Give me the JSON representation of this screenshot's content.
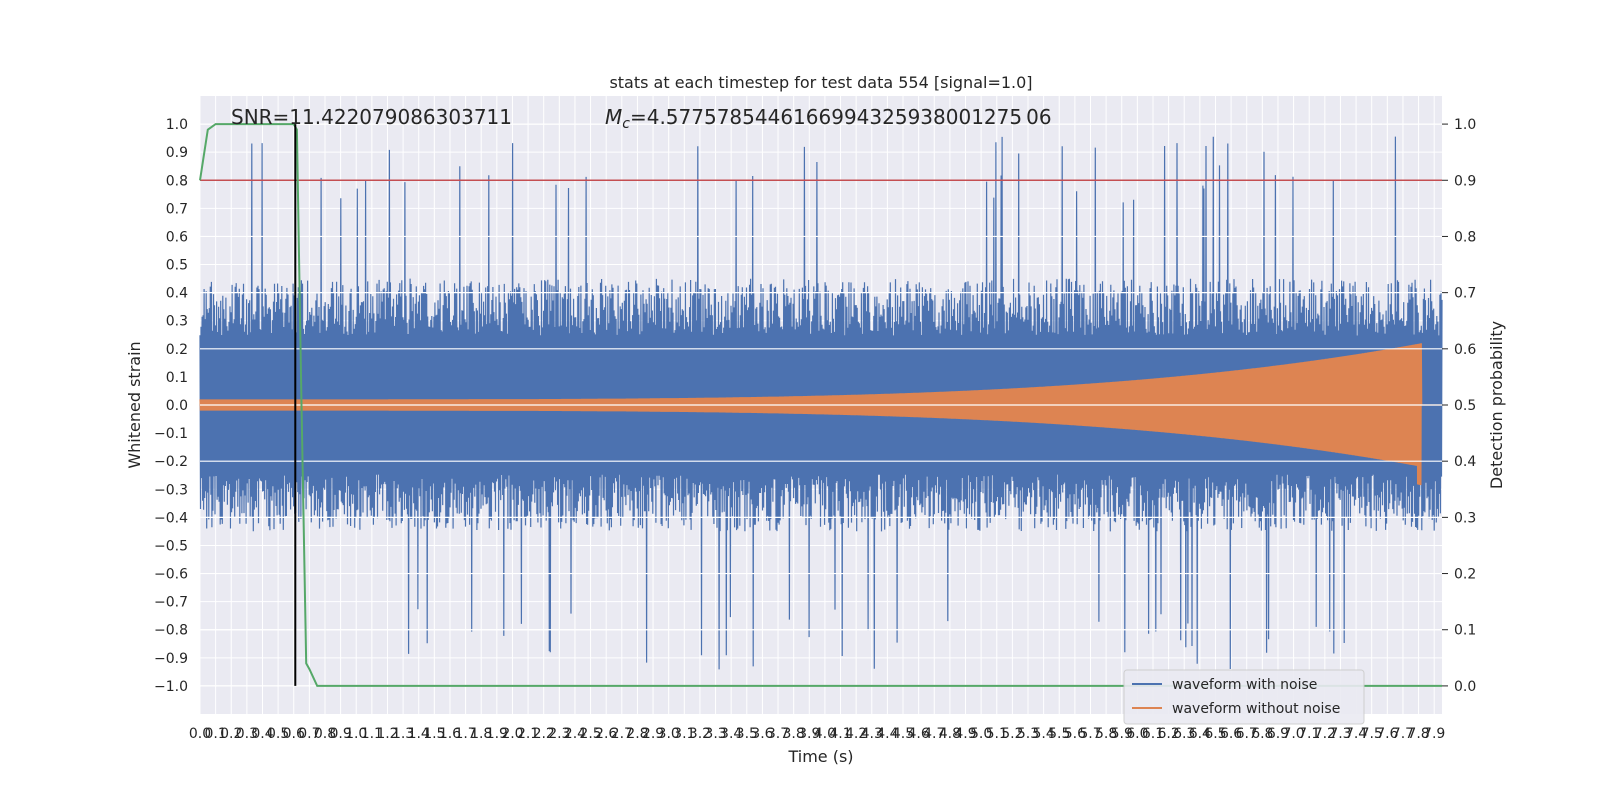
{
  "chart_data": {
    "type": "line",
    "title": "stats at each timestep for test data 554 [signal=1.0]",
    "xlabel": "Time (s)",
    "ylabel": "Whitened strain",
    "y2label": "Detection probability",
    "xlim": [
      0.0,
      7.95
    ],
    "ylim": [
      -1.1,
      1.1
    ],
    "y2lim": [
      -0.05,
      1.05
    ],
    "x_ticks": [
      0.0,
      0.1,
      0.2,
      0.3,
      0.4,
      0.5,
      0.6,
      0.7,
      0.8,
      0.9,
      1.0,
      1.1,
      1.2,
      1.3,
      1.4,
      1.5,
      1.6,
      1.7,
      1.8,
      1.9,
      2.0,
      2.1,
      2.2,
      2.3,
      2.4,
      2.5,
      2.6,
      2.7,
      2.8,
      2.9,
      3.0,
      3.1,
      3.2,
      3.3,
      3.4,
      3.5,
      3.6,
      3.7,
      3.8,
      3.9,
      4.0,
      4.1,
      4.2,
      4.3,
      4.4,
      4.5,
      4.6,
      4.7,
      4.8,
      4.9,
      5.0,
      5.1,
      5.2,
      5.3,
      5.4,
      5.5,
      5.6,
      5.7,
      5.8,
      5.9,
      6.0,
      6.1,
      6.2,
      6.3,
      6.4,
      6.5,
      6.6,
      6.7,
      6.8,
      6.9,
      7.0,
      7.1,
      7.2,
      7.3,
      7.4,
      7.5,
      7.6,
      7.7,
      7.8,
      7.9
    ],
    "y_ticks": [
      -1.0,
      -0.9,
      -0.8,
      -0.7,
      -0.6,
      -0.5,
      -0.4,
      -0.3,
      -0.2,
      -0.1,
      0.0,
      0.1,
      0.2,
      0.3,
      0.4,
      0.5,
      0.6,
      0.7,
      0.8,
      0.9,
      1.0
    ],
    "y2_ticks": [
      0.0,
      0.1,
      0.2,
      0.3,
      0.4,
      0.5,
      0.6,
      0.7,
      0.8,
      0.9,
      1.0
    ],
    "grid": true,
    "legend_position": "lower-right",
    "annotations": {
      "snr": "SNR=11.422079086303711",
      "mc": "=4.5775785446166994325938001275 06",
      "mc_symbol": "M",
      "mc_sub": "c"
    },
    "series": [
      {
        "name": "waveform with noise",
        "color": "#4c72b0",
        "axis": "left",
        "noise_envelope": {
          "typical_amplitude": 0.45,
          "max_peak": 0.98,
          "min_peak": -0.97
        }
      },
      {
        "name": "waveform without noise",
        "color": "#dd8452",
        "axis": "left",
        "chirp": {
          "start_amplitude": 0.02,
          "end_amplitude": 0.22,
          "end_time": 7.82,
          "min_value": -0.3
        }
      },
      {
        "name": "detection probability",
        "color": "#55a868",
        "axis": "right",
        "x": [
          0.0,
          0.05,
          0.1,
          0.2,
          0.3,
          0.4,
          0.5,
          0.6,
          0.62,
          0.65,
          0.68,
          0.7,
          0.75,
          0.8,
          1.0,
          2.0,
          3.0,
          4.0,
          5.0,
          6.0,
          7.0,
          7.5,
          7.95
        ],
        "y": [
          0.9,
          0.99,
          1.0,
          1.0,
          1.0,
          1.0,
          1.0,
          1.0,
          0.99,
          0.5,
          0.04,
          0.03,
          0.0,
          0.0,
          0.0,
          0.0,
          0.0,
          0.0,
          0.0,
          0.0,
          0.0,
          0.0,
          0.0
        ]
      }
    ],
    "threshold_line": {
      "axis": "right",
      "value": 0.9,
      "color": "#c44e52"
    },
    "vertical_marker": {
      "x": 0.61,
      "color": "#000000"
    }
  }
}
